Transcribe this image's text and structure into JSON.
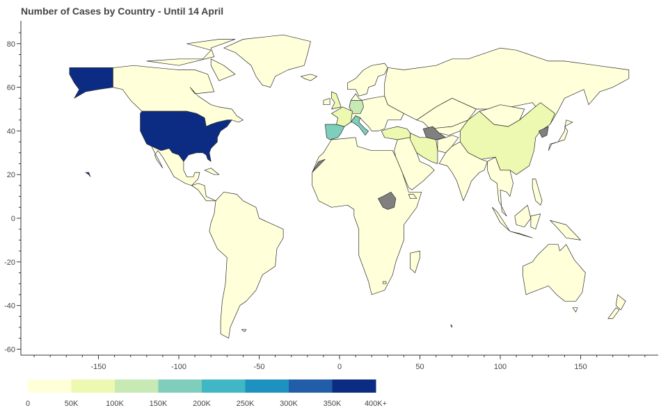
{
  "chart_data": {
    "type": "choropleth",
    "title": "Number of Cases by Country - Until 14 April",
    "xlim": [
      -195,
      195
    ],
    "ylim": [
      -62,
      90
    ],
    "x_ticks": [
      -150,
      -100,
      -50,
      0,
      50,
      100,
      150
    ],
    "y_ticks": [
      -60,
      -40,
      -20,
      0,
      20,
      40,
      60,
      80
    ],
    "grid": false,
    "legend_position": "bottom-left",
    "color_scale": {
      "bins": [
        {
          "label": "0",
          "color": "#ffffd9"
        },
        {
          "label": "50K",
          "color": "#edf8b1"
        },
        {
          "label": "100K",
          "color": "#c7e9b4"
        },
        {
          "label": "150K",
          "color": "#7fcdbb"
        },
        {
          "label": "200K",
          "color": "#41b6c4"
        },
        {
          "label": "250K",
          "color": "#1d91c0"
        },
        {
          "label": "300K",
          "color": "#225ea8"
        },
        {
          "label": "350K",
          "color": "#0c2c84"
        }
      ],
      "labels": [
        "0",
        "50K",
        "100K",
        "150K",
        "200K",
        "250K",
        "300K",
        "350K",
        "400K+"
      ],
      "no_data_color": "#808080",
      "default_color": "#ffffd9"
    },
    "regions": [
      {
        "name": "United States",
        "bin": 7
      },
      {
        "name": "Alaska",
        "bin": 7
      },
      {
        "name": "Hawaii",
        "bin": 7
      },
      {
        "name": "Canada",
        "bin": 0
      },
      {
        "name": "Greenland",
        "bin": 0
      },
      {
        "name": "Mexico",
        "bin": 0
      },
      {
        "name": "South America",
        "bin": 0
      },
      {
        "name": "Spain",
        "bin": 3
      },
      {
        "name": "Italy",
        "bin": 3
      },
      {
        "name": "Germany",
        "bin": 2
      },
      {
        "name": "France",
        "bin": 1
      },
      {
        "name": "United Kingdom",
        "bin": 1
      },
      {
        "name": "Turkey",
        "bin": 1
      },
      {
        "name": "China",
        "bin": 1
      },
      {
        "name": "Iran",
        "bin": 1
      },
      {
        "name": "Russia",
        "bin": 0
      },
      {
        "name": "Africa",
        "bin": 0
      },
      {
        "name": "Australia",
        "bin": 0
      },
      {
        "name": "South Sudan",
        "bin": -1
      },
      {
        "name": "Turkmenistan",
        "bin": -1
      },
      {
        "name": "North Korea",
        "bin": -1
      },
      {
        "name": "Western Sahara",
        "bin": -1
      }
    ]
  }
}
